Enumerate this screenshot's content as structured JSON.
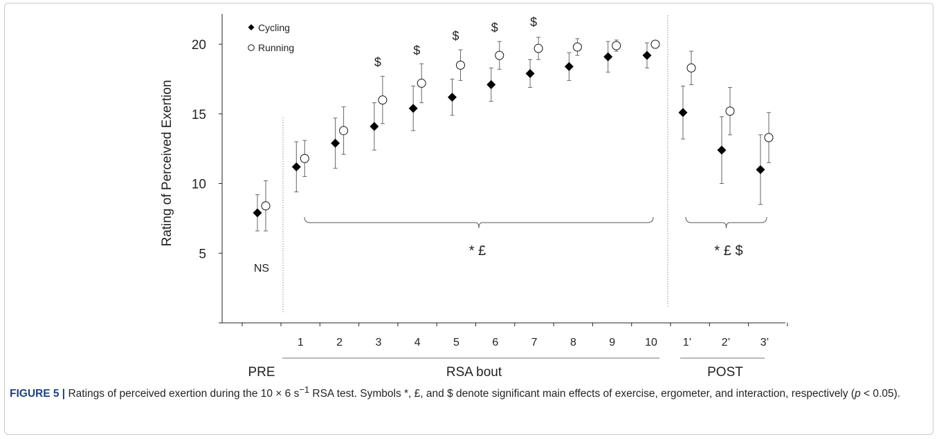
{
  "chart_data": {
    "type": "scatter",
    "ylabel": "Rating of Perceived Exertion",
    "ylim": [
      0,
      22
    ],
    "yticks": [
      5,
      10,
      15,
      20
    ],
    "x_tick_labels": [
      "1",
      "2",
      "3",
      "4",
      "5",
      "6",
      "7",
      "8",
      "9",
      "10",
      "1’",
      "2’",
      "3’"
    ],
    "groups": [
      {
        "label": "PRE"
      },
      {
        "label": "RSA bout"
      },
      {
        "label": "POST"
      }
    ],
    "legend_position": "top-left",
    "series": [
      {
        "name": "Cycling",
        "marker": "diamond-filled",
        "points": [
          {
            "x": "PRE",
            "y": 7.9,
            "err": 1.3
          },
          {
            "x": "1",
            "y": 11.2,
            "err": 1.8
          },
          {
            "x": "2",
            "y": 12.9,
            "err": 1.8
          },
          {
            "x": "3",
            "y": 14.1,
            "err": 1.7
          },
          {
            "x": "4",
            "y": 15.4,
            "err": 1.6
          },
          {
            "x": "5",
            "y": 16.2,
            "err": 1.3
          },
          {
            "x": "6",
            "y": 17.1,
            "err": 1.2
          },
          {
            "x": "7",
            "y": 17.9,
            "err": 1.0
          },
          {
            "x": "8",
            "y": 18.4,
            "err": 1.0
          },
          {
            "x": "9",
            "y": 19.1,
            "err": 1.1
          },
          {
            "x": "10",
            "y": 19.2,
            "err": 0.9
          },
          {
            "x": "1’",
            "y": 15.1,
            "err": 1.9
          },
          {
            "x": "2’",
            "y": 12.4,
            "err": 2.4
          },
          {
            "x": "3’",
            "y": 11.0,
            "err": 2.5
          }
        ]
      },
      {
        "name": "Running",
        "marker": "circle-open",
        "points": [
          {
            "x": "PRE",
            "y": 8.4,
            "err": 1.8
          },
          {
            "x": "1",
            "y": 11.8,
            "err": 1.3
          },
          {
            "x": "2",
            "y": 13.8,
            "err": 1.7
          },
          {
            "x": "3",
            "y": 16.0,
            "err": 1.7
          },
          {
            "x": "4",
            "y": 17.2,
            "err": 1.4
          },
          {
            "x": "5",
            "y": 18.5,
            "err": 1.1
          },
          {
            "x": "6",
            "y": 19.2,
            "err": 1.0
          },
          {
            "x": "7",
            "y": 19.7,
            "err": 0.8
          },
          {
            "x": "8",
            "y": 19.8,
            "err": 0.6
          },
          {
            "x": "9",
            "y": 19.9,
            "err": 0.4
          },
          {
            "x": "10",
            "y": 20.0,
            "err": 0.2
          },
          {
            "x": "1’",
            "y": 18.3,
            "err": 1.2
          },
          {
            "x": "2’",
            "y": 15.2,
            "err": 1.7
          },
          {
            "x": "3’",
            "y": 13.3,
            "err": 1.8
          }
        ]
      }
    ],
    "annotations": {
      "ns_label": "NS",
      "dollar_marker": "$",
      "dollar_bouts": [
        "3",
        "4",
        "5",
        "6",
        "7"
      ],
      "rsa_bracket_label": "*  £",
      "post_bracket_label": "*  £   $"
    }
  },
  "caption": {
    "figure_label": "FIGURE 5 |",
    "text_part1": " Ratings of perceived exertion during the 10 × 6 s",
    "superscript": "−1",
    "text_part2": " RSA test. Symbols *, £, and $ denote significant main effects of exercise, ergometer, and interaction, respectively (",
    "p_symbol": "p",
    "text_part3": " < 0.05)."
  }
}
